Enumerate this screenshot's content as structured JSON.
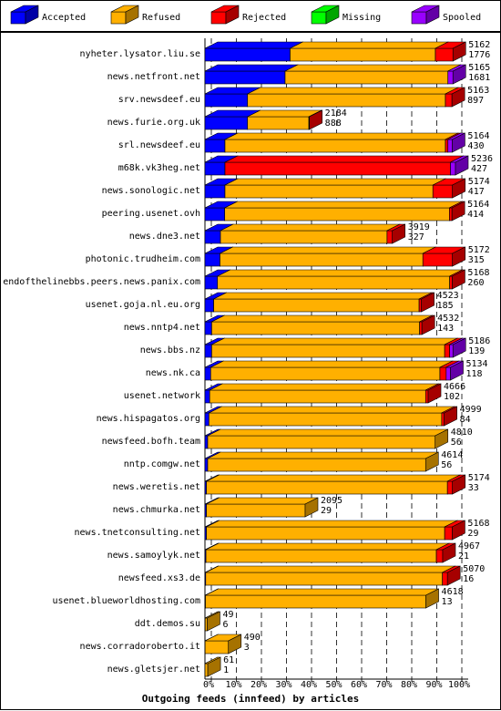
{
  "chart_data": {
    "type": "bar3d-stacked-horizontal",
    "xlabel": "Outgoing feeds (innfeed) by articles",
    "categories": [
      "nyheter.lysator.liu.se",
      "news.netfront.net",
      "srv.newsdeef.eu",
      "news.furie.org.uk",
      "srl.newsdeef.eu",
      "m68k.vk3heg.net",
      "news.sonologic.net",
      "peering.usenet.ovh",
      "news.dne3.net",
      "photonic.trudheim.com",
      "endofthelinebbs.peers.news.panix.com",
      "usenet.goja.nl.eu.org",
      "news.nntp4.net",
      "news.bbs.nz",
      "news.nk.ca",
      "usenet.network",
      "news.hispagatos.org",
      "newsfeed.bofh.team",
      "nntp.comgw.net",
      "news.weretis.net",
      "news.chmurka.net",
      "news.tnetconsulting.net",
      "news.samoylyk.net",
      "newsfeed.xs3.de",
      "usenet.blueworldhosting.com",
      "ddt.demos.su",
      "news.corradoroberto.it",
      "news.gletsjer.net"
    ],
    "series": [
      {
        "name": "Accepted",
        "color": "#0000ff",
        "values": [
          34,
          32,
          17,
          17,
          8,
          8,
          8,
          7.9,
          6.2,
          6,
          5,
          3.5,
          2.7,
          2.7,
          2.3,
          1.9,
          1.6,
          1.1,
          1.1,
          0.6,
          0.6,
          0.6,
          0.4,
          0.3,
          0.2,
          0.1,
          0.06,
          0.02
        ]
      },
      {
        "name": "Refused",
        "color": "#ffb000",
        "values": [
          58,
          65,
          79,
          24.5,
          88,
          0,
          83,
          89.7,
          66.5,
          81,
          92.7,
          82,
          83,
          93,
          91.5,
          86.2,
          92.9,
          90.8,
          87,
          96.2,
          39.4,
          95.1,
          92,
          94.5,
          88,
          0.8,
          9.3,
          1.1
        ]
      },
      {
        "name": "Rejected",
        "color": "#ff0000",
        "values": [
          7,
          0,
          2.6,
          0.2,
          1,
          90,
          7.8,
          1,
          2.1,
          11.8,
          1,
          0.9,
          0.9,
          2,
          2.5,
          1,
          1,
          0,
          0,
          2,
          0,
          3,
          2.5,
          2,
          0,
          0,
          0,
          0
        ]
      },
      {
        "name": "Missing",
        "color": "#00ff00",
        "values": [
          0,
          0,
          0,
          0,
          0,
          0,
          0,
          0,
          0,
          0,
          0,
          0,
          0,
          0,
          0,
          0,
          0,
          0,
          0,
          0,
          0,
          0,
          0,
          0,
          0,
          0,
          0,
          0
        ]
      },
      {
        "name": "Spooled",
        "color": "#9900ff",
        "values": [
          0,
          2,
          0,
          0,
          1.7,
          2,
          0,
          0,
          0,
          0,
          0,
          0,
          0,
          1.3,
          1.7,
          0,
          0,
          0,
          0,
          0,
          0,
          0,
          0,
          0,
          0,
          0,
          0,
          0
        ]
      }
    ],
    "offered_labels": [
      5162,
      5165,
      5163,
      2184,
      5164,
      5236,
      5174,
      5164,
      3919,
      5172,
      5168,
      4523,
      4532,
      5186,
      5134,
      4666,
      4999,
      4810,
      4614,
      5174,
      2095,
      5168,
      4967,
      5070,
      4618,
      49,
      490,
      61
    ],
    "accepted_labels": [
      1776,
      1681,
      897,
      888,
      430,
      427,
      417,
      414,
      327,
      315,
      260,
      185,
      143,
      139,
      118,
      102,
      84,
      56,
      56,
      33,
      29,
      29,
      21,
      16,
      13,
      6,
      3,
      1
    ],
    "xlim": [
      0,
      100
    ],
    "xticks": [
      {
        "value": 0,
        "label": "0%"
      },
      {
        "value": 10,
        "label": "10%"
      },
      {
        "value": 20,
        "label": "20%"
      },
      {
        "value": 30,
        "label": "30%"
      },
      {
        "value": 40,
        "label": "40%"
      },
      {
        "value": 50,
        "label": "50%"
      },
      {
        "value": 60,
        "label": "60%"
      },
      {
        "value": 70,
        "label": "70%"
      },
      {
        "value": 80,
        "label": "80%"
      },
      {
        "value": 90,
        "label": "90%"
      },
      {
        "value": 100,
        "label": "100%"
      }
    ],
    "grid": true
  }
}
